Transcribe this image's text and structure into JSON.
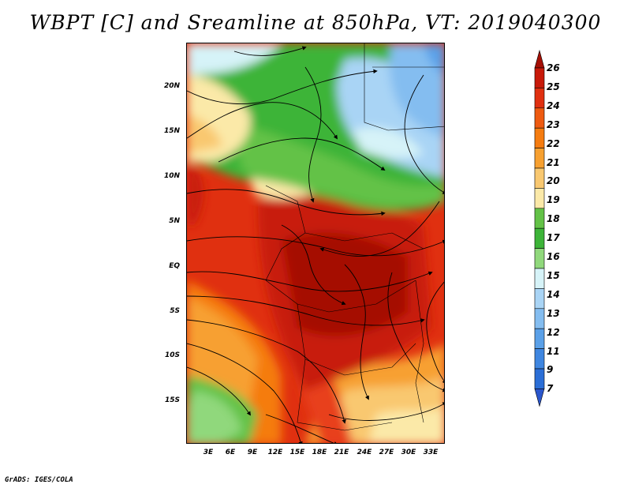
{
  "title": "WBPT [C] and Sreamline at 850hPa, VT: 2019040300",
  "credit": "GrADS: IGES/COLA",
  "lat_labels": [
    "20N",
    "15N",
    "10N",
    "5N",
    "EQ",
    "5S",
    "10S",
    "15S"
  ],
  "lon_labels": [
    "3E",
    "6E",
    "9E",
    "12E",
    "15E",
    "18E",
    "21E",
    "24E",
    "27E",
    "30E",
    "33E"
  ],
  "colorbar": {
    "labels": [
      "26",
      "25",
      "24",
      "23",
      "22",
      "21",
      "20",
      "19",
      "18",
      "17",
      "16",
      "15",
      "14",
      "13",
      "12",
      "11",
      "9",
      "7"
    ],
    "colors": [
      "#a50f05",
      "#c81a0a",
      "#e03010",
      "#ee5a10",
      "#f57c10",
      "#f7a030",
      "#f9c870",
      "#fbe9a8",
      "#63c247",
      "#3db438",
      "#90d87c",
      "#d6f3f8",
      "#a9d4f5",
      "#84bdf0",
      "#5aa0e8",
      "#3f86e0",
      "#2b6ed6",
      "#2a56cc"
    ]
  },
  "map": {
    "variable": "Wet-bulb potential temperature",
    "level": "850hPa",
    "overlay": "streamlines",
    "lat_range": [
      "20N",
      "15S"
    ],
    "lon_range": [
      "3E",
      "33E"
    ]
  }
}
